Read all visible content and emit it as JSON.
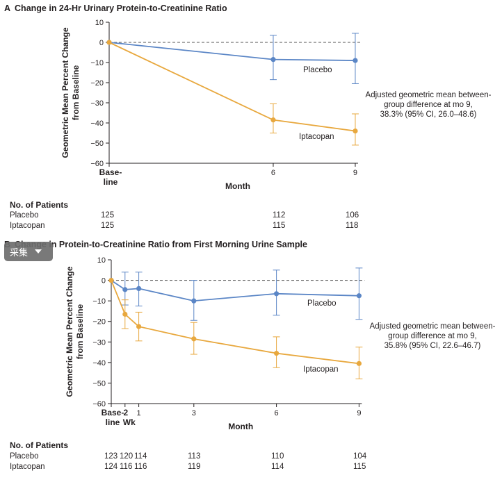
{
  "panels": [
    {
      "letter": "A",
      "title": "Change in 24-Hr Urinary Protein-to-Creatinine Ratio",
      "ylabel_line1": "Geometric Mean Percent Change",
      "ylabel_line2": "from Baseline",
      "xlabel": "Month",
      "annotation": [
        "Adjusted geometric mean between-",
        "group difference at mo 9,",
        "38.3% (95% CI, 26.0–48.6)"
      ],
      "table": {
        "header": "No. of Patients",
        "rows": [
          {
            "label": "Placebo",
            "values": [
              "125",
              "112",
              "106"
            ]
          },
          {
            "label": "Iptacopan",
            "values": [
              "125",
              "115",
              "118"
            ]
          }
        ]
      }
    },
    {
      "letter": "B",
      "title": "Change in Protein-to-Creatinine Ratio from First Morning Urine Sample",
      "ylabel_line1": "Geometric Mean Percent Change",
      "ylabel_line2": "from Baseline",
      "xlabel": "Month",
      "annotation": [
        "Adjusted geometric mean between-",
        "group difference at mo 9,",
        "35.8% (95% CI, 22.6–46.7)"
      ],
      "table": {
        "header": "No. of Patients",
        "rows": [
          {
            "label": "Placebo",
            "values": [
              "123",
              "120",
              "114",
              "113",
              "110",
              "104"
            ]
          },
          {
            "label": "Iptacopan",
            "values": [
              "124",
              "116",
              "116",
              "119",
              "114",
              "115"
            ]
          }
        ]
      }
    }
  ],
  "overlay": {
    "text": "采集"
  },
  "colors": {
    "placebo": "#5b86c6",
    "iptacopan": "#e8a83e",
    "axis": "#231f20",
    "refline": "#555555"
  },
  "chart_data": [
    {
      "type": "line",
      "title": "Change in 24-Hr Urinary Protein-to-Creatinine Ratio",
      "xlabel": "Month",
      "ylabel": "Geometric Mean Percent Change from Baseline",
      "ylim": [
        -60,
        10
      ],
      "yticks": [
        10,
        0,
        -10,
        -20,
        -30,
        -40,
        -50,
        -60
      ],
      "xticks": [
        {
          "x": 0,
          "label": "Base-line"
        },
        {
          "x": 6,
          "label": "6"
        },
        {
          "x": 9,
          "label": "9"
        }
      ],
      "reference_line_y": 0,
      "series": [
        {
          "name": "Placebo",
          "color": "#5b86c6",
          "x": [
            0,
            6,
            9
          ],
          "y": [
            0,
            -8.5,
            -9
          ],
          "err_low": [
            0,
            -18.5,
            -20.5
          ],
          "err_high": [
            0,
            3.5,
            4.5
          ]
        },
        {
          "name": "Iptacopan",
          "color": "#e8a83e",
          "x": [
            0,
            6,
            9
          ],
          "y": [
            0,
            -38.5,
            -44
          ],
          "err_low": [
            0,
            -45,
            -51
          ],
          "err_high": [
            0,
            -30.5,
            -35.5
          ]
        }
      ]
    },
    {
      "type": "line",
      "title": "Change in Protein-to-Creatinine Ratio from First Morning Urine Sample",
      "xlabel": "Month",
      "ylabel": "Geometric Mean Percent Change from Baseline",
      "ylim": [
        -60,
        10
      ],
      "yticks": [
        10,
        0,
        -10,
        -20,
        -30,
        -40,
        -50,
        -60
      ],
      "xticks": [
        {
          "x": 0,
          "label": "Base-line"
        },
        {
          "x": 0.5,
          "label": "2 Wk"
        },
        {
          "x": 1,
          "label": "1"
        },
        {
          "x": 3,
          "label": "3"
        },
        {
          "x": 6,
          "label": "6"
        },
        {
          "x": 9,
          "label": "9"
        }
      ],
      "reference_line_y": 0,
      "series": [
        {
          "name": "Placebo",
          "color": "#5b86c6",
          "x": [
            0,
            0.5,
            1,
            3,
            6,
            9
          ],
          "y": [
            0,
            -4.5,
            -4,
            -10,
            -6.5,
            -7.5
          ],
          "err_low": [
            0,
            -12,
            -12.5,
            -19.5,
            -17,
            -19
          ],
          "err_high": [
            0,
            4,
            4,
            0,
            5,
            6
          ]
        },
        {
          "name": "Iptacopan",
          "color": "#e8a83e",
          "x": [
            0,
            0.5,
            1,
            3,
            6,
            9
          ],
          "y": [
            0,
            -16.5,
            -22.5,
            -28.5,
            -35.5,
            -40.5
          ],
          "err_low": [
            0,
            -23.5,
            -29.5,
            -36,
            -42.5,
            -48
          ],
          "err_high": [
            0,
            -9.5,
            -15.5,
            -20.5,
            -27.5,
            -32.5
          ]
        }
      ]
    }
  ]
}
